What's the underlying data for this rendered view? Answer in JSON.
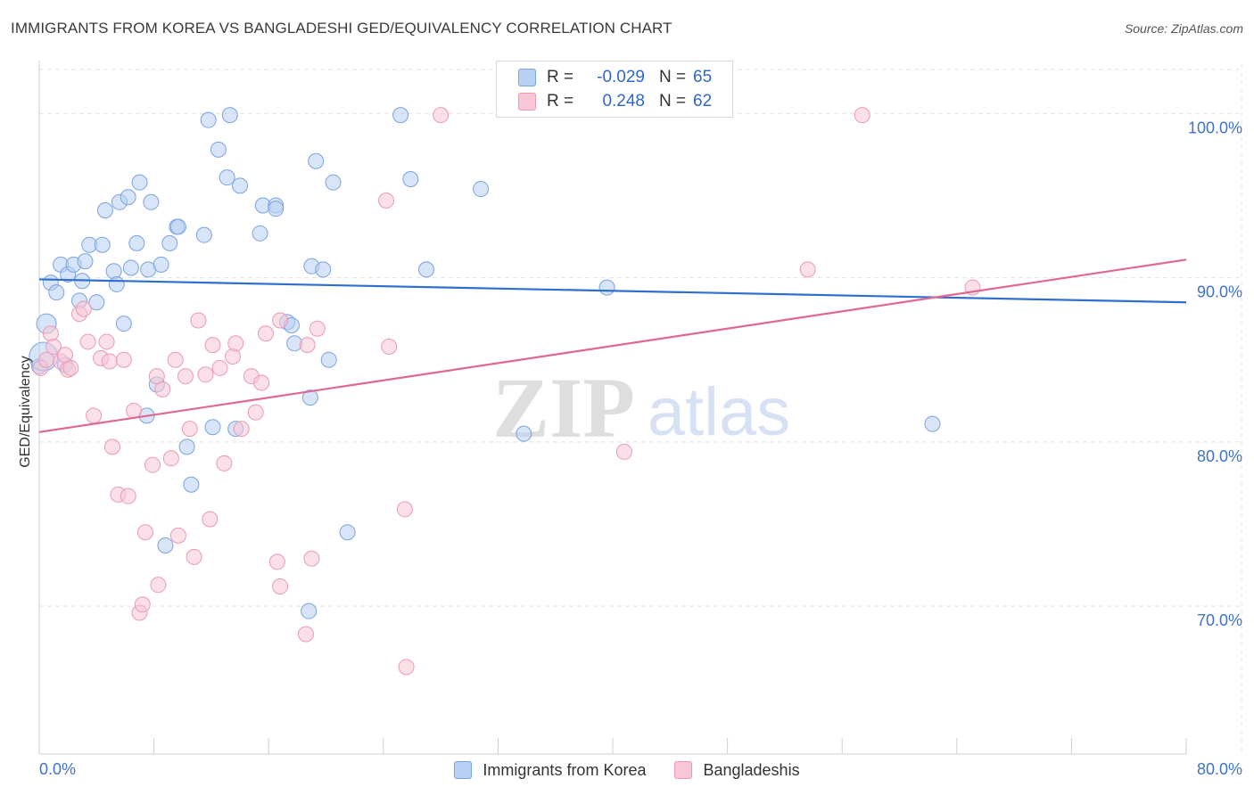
{
  "title": "IMMIGRANTS FROM KOREA VS BANGLADESHI GED/EQUIVALENCY CORRELATION CHART",
  "source": "Source: ZipAtlas.com",
  "watermark": {
    "zip": "ZIP",
    "atlas": "atlas"
  },
  "colors": {
    "korea_fill": "#b8d0f3",
    "korea_stroke": "#7aa3e0",
    "korea_line": "#2f6fd0",
    "bangla_fill": "#f8c6d6",
    "bangla_stroke": "#ea9ab6",
    "bangla_line": "#e2678f",
    "axis_text": "#3f73c9",
    "grid": "#e2e2e2"
  },
  "legend": {
    "korea": {
      "r_label": "R =",
      "r_value": "-0.029",
      "n_label": "N =",
      "n_value": "65"
    },
    "bangla": {
      "r_label": "R =",
      "r_value": "0.248",
      "n_label": "N =",
      "n_value": "62"
    }
  },
  "bottom_legend": {
    "korea": "Immigrants from Korea",
    "bangla": "Bangladeshis"
  },
  "chart_data": {
    "type": "scatter",
    "title": "IMMIGRANTS FROM KOREA VS BANGLADESHI GED/EQUIVALENCY CORRELATION CHART",
    "xlabel": "",
    "ylabel": "GED/Equivalency",
    "xlim": [
      0,
      80
    ],
    "ylim": [
      61,
      103
    ],
    "x_tick_labels": [
      "0.0%",
      "80.0%"
    ],
    "y_ticks": [
      70,
      80,
      90,
      100
    ],
    "y_tick_labels": [
      "70.0%",
      "80.0%",
      "90.0%",
      "100.0%"
    ],
    "grid": true,
    "legend_position": "top-center",
    "series": [
      {
        "name": "Immigrants from Korea",
        "trend": {
          "x": [
            0,
            80
          ],
          "y": [
            89.9,
            88.5
          ]
        },
        "points": [
          [
            0.0,
            84.6
          ],
          [
            0.5,
            87.2
          ],
          [
            0.8,
            89.7
          ],
          [
            1.2,
            89.1
          ],
          [
            1.5,
            90.8
          ],
          [
            1.8,
            84.7
          ],
          [
            2.0,
            90.2
          ],
          [
            2.4,
            90.8
          ],
          [
            2.8,
            88.6
          ],
          [
            3.0,
            89.8
          ],
          [
            3.2,
            91.0
          ],
          [
            3.5,
            92.0
          ],
          [
            4.0,
            88.5
          ],
          [
            4.4,
            92.0
          ],
          [
            4.6,
            94.1
          ],
          [
            5.2,
            90.4
          ],
          [
            5.4,
            89.6
          ],
          [
            5.6,
            94.6
          ],
          [
            5.9,
            87.2
          ],
          [
            6.2,
            94.9
          ],
          [
            6.4,
            90.6
          ],
          [
            6.8,
            92.1
          ],
          [
            7.0,
            95.8
          ],
          [
            7.5,
            81.6
          ],
          [
            7.6,
            90.5
          ],
          [
            7.8,
            94.6
          ],
          [
            8.2,
            83.5
          ],
          [
            8.5,
            90.8
          ],
          [
            8.8,
            73.7
          ],
          [
            9.1,
            92.1
          ],
          [
            9.6,
            93.1
          ],
          [
            9.7,
            93.1
          ],
          [
            10.3,
            79.7
          ],
          [
            10.6,
            77.4
          ],
          [
            11.5,
            92.6
          ],
          [
            11.8,
            99.6
          ],
          [
            12.1,
            80.9
          ],
          [
            12.5,
            97.8
          ],
          [
            13.1,
            96.1
          ],
          [
            13.3,
            99.9
          ],
          [
            13.7,
            80.8
          ],
          [
            14.0,
            95.6
          ],
          [
            15.4,
            92.7
          ],
          [
            15.6,
            94.4
          ],
          [
            16.5,
            94.4
          ],
          [
            16.5,
            94.2
          ],
          [
            17.3,
            87.3
          ],
          [
            17.6,
            87.1
          ],
          [
            17.8,
            86.0
          ],
          [
            18.8,
            69.7
          ],
          [
            18.9,
            82.7
          ],
          [
            19.0,
            90.7
          ],
          [
            19.3,
            97.1
          ],
          [
            19.8,
            90.5
          ],
          [
            20.2,
            85.0
          ],
          [
            20.5,
            95.8
          ],
          [
            21.5,
            74.5
          ],
          [
            25.2,
            99.9
          ],
          [
            25.9,
            96.0
          ],
          [
            27.0,
            90.5
          ],
          [
            30.8,
            95.4
          ],
          [
            33.8,
            80.5
          ],
          [
            39.6,
            89.4
          ],
          [
            62.3,
            81.1
          ],
          [
            0.3,
            85.2
          ]
        ]
      },
      {
        "name": "Bangladeshis",
        "trend": {
          "x": [
            0,
            80
          ],
          "y": [
            80.6,
            91.1
          ]
        },
        "points": [
          [
            0.1,
            84.5
          ],
          [
            0.5,
            85.0
          ],
          [
            0.8,
            86.6
          ],
          [
            1.0,
            85.8
          ],
          [
            1.5,
            84.9
          ],
          [
            1.8,
            85.3
          ],
          [
            2.0,
            84.4
          ],
          [
            2.2,
            84.5
          ],
          [
            2.8,
            87.8
          ],
          [
            3.1,
            88.1
          ],
          [
            3.4,
            86.1
          ],
          [
            3.8,
            81.6
          ],
          [
            4.3,
            85.1
          ],
          [
            4.7,
            86.1
          ],
          [
            4.9,
            84.9
          ],
          [
            5.1,
            79.7
          ],
          [
            5.5,
            76.8
          ],
          [
            5.9,
            85.0
          ],
          [
            6.2,
            76.7
          ],
          [
            6.6,
            81.9
          ],
          [
            7.0,
            69.6
          ],
          [
            7.2,
            70.1
          ],
          [
            7.4,
            74.5
          ],
          [
            7.9,
            78.6
          ],
          [
            8.2,
            84.0
          ],
          [
            8.3,
            71.3
          ],
          [
            8.6,
            83.2
          ],
          [
            9.2,
            79.0
          ],
          [
            9.5,
            85.0
          ],
          [
            9.7,
            74.3
          ],
          [
            10.2,
            84.0
          ],
          [
            10.5,
            80.8
          ],
          [
            10.8,
            73.0
          ],
          [
            11.1,
            87.4
          ],
          [
            11.6,
            84.1
          ],
          [
            11.9,
            75.3
          ],
          [
            12.1,
            85.9
          ],
          [
            12.6,
            84.5
          ],
          [
            12.9,
            78.7
          ],
          [
            13.5,
            85.2
          ],
          [
            13.7,
            86.0
          ],
          [
            14.1,
            80.8
          ],
          [
            14.8,
            84.0
          ],
          [
            15.1,
            81.8
          ],
          [
            15.5,
            83.6
          ],
          [
            15.8,
            86.6
          ],
          [
            16.6,
            72.7
          ],
          [
            16.8,
            87.4
          ],
          [
            16.8,
            71.2
          ],
          [
            18.6,
            68.3
          ],
          [
            18.7,
            85.9
          ],
          [
            19.0,
            72.9
          ],
          [
            19.4,
            86.9
          ],
          [
            24.4,
            85.8
          ],
          [
            24.2,
            94.7
          ],
          [
            25.5,
            75.9
          ],
          [
            25.6,
            66.3
          ],
          [
            28.0,
            99.9
          ],
          [
            40.8,
            79.4
          ],
          [
            53.6,
            90.5
          ],
          [
            57.4,
            99.9
          ],
          [
            65.1,
            89.4
          ]
        ]
      }
    ]
  }
}
